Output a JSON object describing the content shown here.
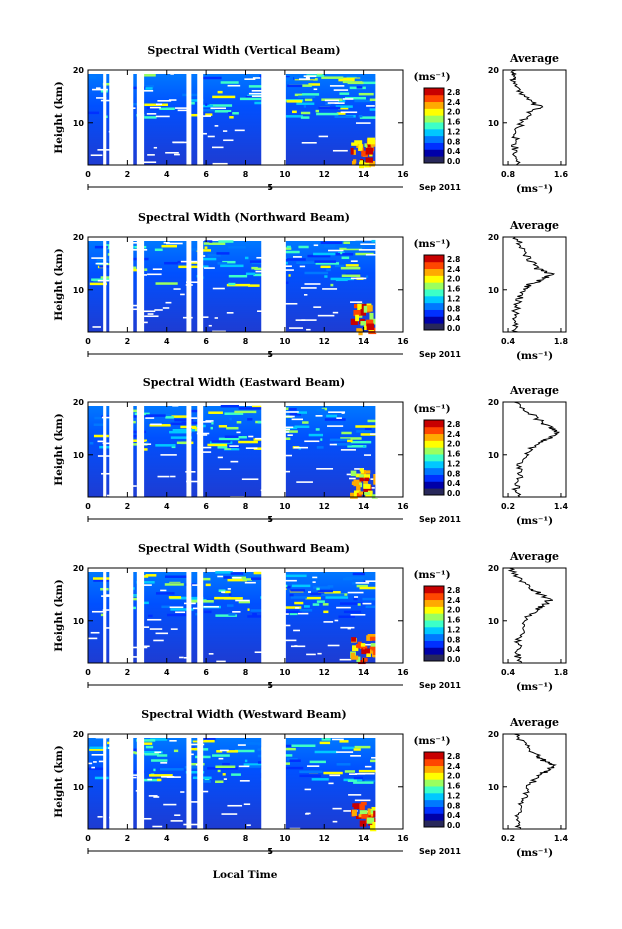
{
  "figure": {
    "date_label": "Sep 2011",
    "day_label": "5",
    "xlabel": "Local Time",
    "ylabel": "Height (km)",
    "units": "(ms⁻¹)",
    "avg_title": "Average",
    "avg_xlabel": "(ms⁻¹)",
    "colorbar_ticks": [
      "0.0",
      "0.4",
      "0.8",
      "1.2",
      "1.6",
      "2.0",
      "2.4",
      "2.8"
    ],
    "colorbar_colors": [
      "#28285a",
      "#0000a8",
      "#0030ff",
      "#0078ff",
      "#00c8ff",
      "#3cffc8",
      "#9bff5f",
      "#ffff00",
      "#ffaa00",
      "#ff4600",
      "#c80000"
    ]
  },
  "chart_data": [
    {
      "type": "heatmap",
      "title": "Spectral Width (Vertical Beam)",
      "xlabel": "Local Time",
      "ylabel": "Height (km)",
      "xlim": [
        0,
        16
      ],
      "ylim": [
        2,
        20
      ],
      "xticks": [
        "0",
        "2",
        "4",
        "6",
        "8",
        "10",
        "12",
        "14",
        "16"
      ],
      "yticks": [
        "10",
        "20"
      ],
      "colorbar": {
        "range": [
          0.0,
          2.8
        ],
        "label": "(ms⁻¹)"
      },
      "average_profile": {
        "title": "Average",
        "xticks": [
          "0.8",
          "1.6"
        ],
        "xlim": [
          0.5,
          1.9
        ],
        "ylim": [
          2,
          20
        ],
        "yticks": [
          "10",
          "20"
        ],
        "height_km": [
          2,
          4,
          6,
          8,
          10,
          12,
          13,
          14,
          16,
          18,
          19,
          20
        ],
        "width_ms": [
          0.85,
          0.8,
          0.75,
          0.8,
          0.9,
          1.1,
          1.35,
          1.1,
          0.9,
          0.75,
          0.7,
          0.8
        ]
      }
    },
    {
      "type": "heatmap",
      "title": "Spectral Width (Northward Beam)",
      "xlabel": "Local Time",
      "ylabel": "Height (km)",
      "xlim": [
        0,
        16
      ],
      "ylim": [
        2,
        20
      ],
      "xticks": [
        "0",
        "2",
        "4",
        "6",
        "8",
        "10",
        "12",
        "14",
        "16"
      ],
      "yticks": [
        "10",
        "20"
      ],
      "colorbar": {
        "range": [
          0.0,
          2.8
        ],
        "label": "(ms⁻¹)"
      },
      "average_profile": {
        "title": "Average",
        "xticks": [
          "0.4",
          "1.8"
        ],
        "xlim": [
          0.1,
          2.1
        ],
        "ylim": [
          2,
          20
        ],
        "yticks": [
          "10",
          "20"
        ],
        "height_km": [
          2,
          4,
          6,
          8,
          10,
          11,
          12,
          13,
          14,
          16,
          18,
          20
        ],
        "width_ms": [
          0.5,
          0.45,
          0.5,
          0.6,
          0.8,
          0.9,
          1.4,
          1.6,
          1.2,
          0.9,
          0.7,
          0.5
        ]
      }
    },
    {
      "type": "heatmap",
      "title": "Spectral Width (Eastward Beam)",
      "xlabel": "Local Time",
      "ylabel": "Height (km)",
      "xlim": [
        0,
        16
      ],
      "ylim": [
        2,
        20
      ],
      "xticks": [
        "0",
        "2",
        "4",
        "6",
        "8",
        "10",
        "12",
        "14",
        "16"
      ],
      "yticks": [
        "10",
        "20"
      ],
      "colorbar": {
        "range": [
          0.0,
          2.8
        ],
        "label": "(ms⁻¹)"
      },
      "average_profile": {
        "title": "Average",
        "xticks": [
          "0.2",
          "1.4"
        ],
        "xlim": [
          0.0,
          1.7
        ],
        "ylim": [
          2,
          20
        ],
        "yticks": [
          "10",
          "20"
        ],
        "height_km": [
          2,
          4,
          6,
          8,
          10,
          12,
          13,
          14,
          15,
          16,
          18,
          20
        ],
        "width_ms": [
          0.4,
          0.35,
          0.5,
          0.45,
          0.6,
          0.9,
          1.2,
          1.5,
          1.3,
          1.1,
          0.7,
          0.3
        ]
      }
    },
    {
      "type": "heatmap",
      "title": "Spectral Width (Southward Beam)",
      "xlabel": "Local Time",
      "ylabel": "Height (km)",
      "xlim": [
        0,
        16
      ],
      "ylim": [
        2,
        20
      ],
      "xticks": [
        "0",
        "2",
        "4",
        "6",
        "8",
        "10",
        "12",
        "14",
        "16"
      ],
      "yticks": [
        "10",
        "20"
      ],
      "colorbar": {
        "range": [
          0.0,
          2.8
        ],
        "label": "(ms⁻¹)"
      },
      "average_profile": {
        "title": "Average",
        "xticks": [
          "0.4",
          "1.8"
        ],
        "xlim": [
          0.1,
          2.1
        ],
        "ylim": [
          2,
          20
        ],
        "yticks": [
          "10",
          "20"
        ],
        "height_km": [
          2,
          4,
          6,
          8,
          10,
          12,
          13,
          14,
          15,
          16,
          18,
          20
        ],
        "width_ms": [
          0.6,
          0.55,
          0.6,
          0.7,
          0.8,
          1.1,
          1.4,
          1.6,
          1.3,
          1.0,
          0.6,
          0.3
        ]
      }
    },
    {
      "type": "heatmap",
      "title": "Spectral Width (Westward Beam)",
      "xlabel": "Local Time",
      "ylabel": "Height (km)",
      "xlim": [
        0,
        16
      ],
      "ylim": [
        2,
        20
      ],
      "xticks": [
        "0",
        "2",
        "4",
        "6",
        "8",
        "10",
        "12",
        "14",
        "16"
      ],
      "yticks": [
        "10",
        "20"
      ],
      "colorbar": {
        "range": [
          0.0,
          2.8
        ],
        "label": "(ms⁻¹)"
      },
      "average_profile": {
        "title": "Average",
        "xticks": [
          "0.2",
          "1.4"
        ],
        "xlim": [
          0.0,
          1.7
        ],
        "ylim": [
          2,
          20
        ],
        "yticks": [
          "10",
          "20"
        ],
        "height_km": [
          2,
          4,
          6,
          8,
          10,
          12,
          13,
          14,
          15,
          16,
          18,
          20
        ],
        "width_ms": [
          0.45,
          0.4,
          0.5,
          0.55,
          0.7,
          0.9,
          1.2,
          1.4,
          1.1,
          0.9,
          0.6,
          0.3
        ]
      }
    }
  ]
}
